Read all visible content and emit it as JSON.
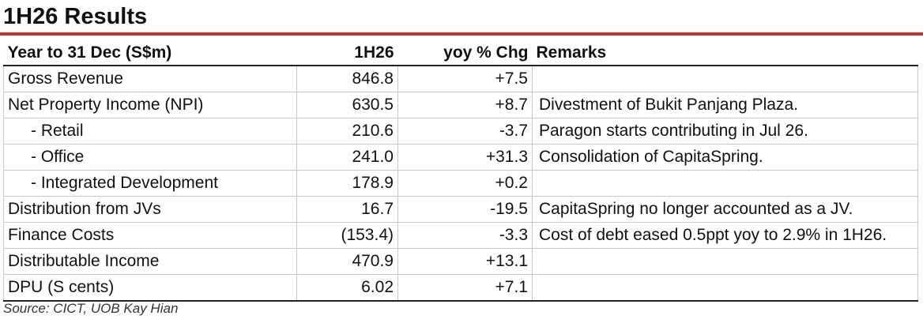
{
  "title": "1H26 Results",
  "colors": {
    "title_rule": "#c0392b",
    "rule": "#222222",
    "grid": "#c8c8c8"
  },
  "table": {
    "headers": [
      "Year to 31 Dec (S$m)",
      "1H26",
      "yoy % Chg",
      "Remarks"
    ],
    "rows": [
      {
        "label": "Gross Revenue",
        "value": "846.8",
        "change": "+7.5",
        "remark": "",
        "indent": false
      },
      {
        "label": "Net Property Income (NPI)",
        "value": "630.5",
        "change": "+8.7",
        "remark": "Divestment of Bukit Panjang Plaza.",
        "indent": false
      },
      {
        "label": "- Retail",
        "value": "210.6",
        "change": "-3.7",
        "remark": "Paragon starts contributing in Jul 26.",
        "indent": true
      },
      {
        "label": "- Office",
        "value": "241.0",
        "change": "+31.3",
        "remark": "Consolidation of CapitaSpring.",
        "indent": true
      },
      {
        "label": "- Integrated Development",
        "value": "178.9",
        "change": "+0.2",
        "remark": "",
        "indent": true
      },
      {
        "label": "Distribution from JVs",
        "value": "16.7",
        "change": "-19.5",
        "remark": "CapitaSpring no longer accounted as a JV.",
        "indent": false
      },
      {
        "label": "Finance Costs",
        "value": "(153.4)",
        "change": "-3.3",
        "remark": "Cost of debt eased 0.5ppt yoy to 2.9% in 1H26.",
        "indent": false
      },
      {
        "label": "Distributable Income",
        "value": "470.9",
        "change": "+13.1",
        "remark": "",
        "indent": false
      },
      {
        "label": "DPU (S cents)",
        "value": "6.02",
        "change": "+7.1",
        "remark": "",
        "indent": false
      }
    ]
  },
  "source": "Source: CICT, UOB Kay Hian"
}
